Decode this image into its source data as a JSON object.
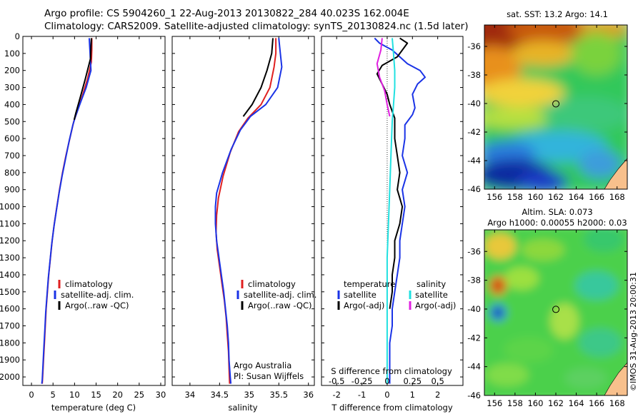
{
  "header": {
    "line1": "Argo profile: CS 5904260_1 22-Aug-2013 20130822_284 40.023S 162.004E",
    "line2": "Climatology: CARS2009. Satellite-adjusted climatology: synTS_20130824.nc (1.5d later)"
  },
  "colors": {
    "climatology": "#e02020",
    "satellite": "#1a33e6",
    "argo": "#000000",
    "argo_salinity_diff": "#e020e0",
    "satellite_salinity_diff": "#20e0e0"
  },
  "chart_data": [
    {
      "type": "line",
      "panel": "temperature",
      "xlabel": "temperature (deg C)",
      "ylabel": "",
      "xlim": [
        -2,
        31
      ],
      "ylim": [
        2050,
        0
      ],
      "xticks": [
        0,
        5,
        10,
        15,
        20,
        25,
        30
      ],
      "yticks": [
        0,
        100,
        200,
        300,
        400,
        500,
        600,
        700,
        800,
        900,
        1000,
        1100,
        1200,
        1300,
        1400,
        1500,
        1600,
        1700,
        1800,
        1900,
        2000
      ],
      "legend": [
        "climatology",
        "satellite-adj. clim.",
        "Argo(..raw -QC)"
      ],
      "legend_position": "lower-right",
      "series": [
        {
          "name": "climatology",
          "color_key": "climatology",
          "points": [
            [
              14.0,
              10
            ],
            [
              14.0,
              80
            ],
            [
              13.9,
              150
            ],
            [
              13.0,
              250
            ],
            [
              11.8,
              350
            ],
            [
              10.5,
              450
            ],
            [
              9.8,
              500
            ],
            [
              8.9,
              600
            ],
            [
              8.0,
              700
            ],
            [
              7.2,
              800
            ],
            [
              6.5,
              900
            ],
            [
              5.9,
              1000
            ],
            [
              5.3,
              1100
            ],
            [
              4.8,
              1200
            ],
            [
              4.4,
              1300
            ],
            [
              4.0,
              1400
            ],
            [
              3.7,
              1500
            ],
            [
              3.4,
              1600
            ],
            [
              3.2,
              1700
            ],
            [
              3.0,
              1800
            ],
            [
              2.8,
              1900
            ],
            [
              2.6,
              2000
            ],
            [
              2.5,
              2040
            ]
          ]
        },
        {
          "name": "satellite-adj. clim.",
          "color_key": "satellite",
          "points": [
            [
              13.4,
              10
            ],
            [
              13.6,
              100
            ],
            [
              13.8,
              200
            ],
            [
              12.7,
              300
            ],
            [
              11.5,
              380
            ],
            [
              10.2,
              470
            ],
            [
              9.6,
              520
            ],
            [
              8.7,
              620
            ],
            [
              7.9,
              720
            ],
            [
              7.1,
              820
            ],
            [
              6.4,
              920
            ],
            [
              5.8,
              1020
            ],
            [
              5.2,
              1120
            ],
            [
              4.7,
              1220
            ],
            [
              4.3,
              1320
            ],
            [
              3.9,
              1420
            ],
            [
              3.6,
              1520
            ],
            [
              3.3,
              1620
            ],
            [
              3.1,
              1720
            ],
            [
              2.9,
              1820
            ],
            [
              2.7,
              1920
            ],
            [
              2.5,
              2020
            ],
            [
              2.4,
              2040
            ]
          ]
        },
        {
          "name": "Argo(..raw -QC)",
          "color_key": "argo",
          "points": [
            [
              13.9,
              10
            ],
            [
              13.8,
              60
            ],
            [
              13.7,
              130
            ],
            [
              12.5,
              250
            ],
            [
              11.3,
              360
            ],
            [
              10.3,
              450
            ],
            [
              9.9,
              490
            ]
          ]
        }
      ]
    },
    {
      "type": "line",
      "panel": "salinity",
      "xlabel": "salinity",
      "ylabel": "",
      "xlim": [
        33.7,
        36.1
      ],
      "ylim": [
        2050,
        0
      ],
      "xticks": [
        34,
        34.5,
        35,
        35.5,
        36
      ],
      "legend": [
        "climatology",
        "satellite-adj. clim.",
        "Argo(..raw -QC)"
      ],
      "legend_position": "lower-right",
      "annotation": [
        "Argo Australia",
        "PI: Susan Wijffels"
      ],
      "series": [
        {
          "name": "climatology",
          "color_key": "climatology",
          "points": [
            [
              35.45,
              10
            ],
            [
              35.45,
              100
            ],
            [
              35.42,
              180
            ],
            [
              35.35,
              300
            ],
            [
              35.2,
              400
            ],
            [
              34.98,
              480
            ],
            [
              34.82,
              560
            ],
            [
              34.68,
              680
            ],
            [
              34.56,
              820
            ],
            [
              34.48,
              950
            ],
            [
              34.45,
              1050
            ],
            [
              34.44,
              1150
            ],
            [
              34.46,
              1250
            ],
            [
              34.5,
              1350
            ],
            [
              34.54,
              1450
            ],
            [
              34.58,
              1550
            ],
            [
              34.61,
              1650
            ],
            [
              34.63,
              1750
            ],
            [
              34.65,
              1850
            ],
            [
              34.66,
              1950
            ],
            [
              34.67,
              2040
            ]
          ]
        },
        {
          "name": "satellite-adj. clim.",
          "color_key": "satellite",
          "points": [
            [
              35.5,
              10
            ],
            [
              35.52,
              80
            ],
            [
              35.55,
              180
            ],
            [
              35.48,
              300
            ],
            [
              35.28,
              400
            ],
            [
              35.02,
              470
            ],
            [
              34.85,
              550
            ],
            [
              34.7,
              660
            ],
            [
              34.55,
              800
            ],
            [
              34.45,
              920
            ],
            [
              34.43,
              1000
            ],
            [
              34.43,
              1100
            ],
            [
              34.45,
              1200
            ],
            [
              34.49,
              1300
            ],
            [
              34.53,
              1400
            ],
            [
              34.57,
              1500
            ],
            [
              34.6,
              1600
            ],
            [
              34.63,
              1700
            ],
            [
              34.65,
              1800
            ],
            [
              34.66,
              1900
            ],
            [
              34.68,
              2000
            ],
            [
              34.69,
              2040
            ]
          ]
        },
        {
          "name": "Argo(..raw -QC)",
          "color_key": "argo",
          "points": [
            [
              35.4,
              10
            ],
            [
              35.38,
              100
            ],
            [
              35.3,
              200
            ],
            [
              35.2,
              300
            ],
            [
              35.05,
              400
            ],
            [
              34.9,
              470
            ]
          ]
        }
      ]
    },
    {
      "type": "line",
      "panel": "difference",
      "xlabel": "T difference from climatology",
      "xlabel2": "S difference from climatology",
      "xlim": [
        -2.6,
        3.0
      ],
      "ylim": [
        2050,
        0
      ],
      "xticks": [
        -2,
        -1,
        0,
        1,
        2
      ],
      "xticks2_labels": [
        "-0.5",
        "-0.25",
        "0",
        "0.25",
        "0.5"
      ],
      "xticks2_positions": [
        -2,
        -1,
        0,
        1,
        2
      ],
      "legend_groups": [
        {
          "title": "temperature",
          "items": [
            "satellite",
            "Argo(-adj)"
          ]
        },
        {
          "title": "salinity",
          "items": [
            "satellite",
            "Argo(-adj)"
          ]
        }
      ],
      "series": [
        {
          "name": "temperature satellite",
          "color_key": "satellite",
          "points": [
            [
              -0.5,
              10
            ],
            [
              -0.3,
              40
            ],
            [
              0.2,
              80
            ],
            [
              0.5,
              120
            ],
            [
              0.8,
              160
            ],
            [
              1.3,
              200
            ],
            [
              1.5,
              240
            ],
            [
              1.2,
              280
            ],
            [
              1.0,
              340
            ],
            [
              1.1,
              420
            ],
            [
              1.0,
              460
            ],
            [
              0.7,
              520
            ],
            [
              0.7,
              600
            ],
            [
              0.6,
              700
            ],
            [
              0.8,
              800
            ],
            [
              0.6,
              900
            ],
            [
              0.7,
              1000
            ],
            [
              0.6,
              1100
            ],
            [
              0.5,
              1200
            ],
            [
              0.5,
              1300
            ],
            [
              0.4,
              1400
            ],
            [
              0.3,
              1500
            ],
            [
              0.2,
              1600
            ],
            [
              0.2,
              1700
            ],
            [
              0.1,
              1800
            ],
            [
              0.1,
              1900
            ],
            [
              0.1,
              2000
            ],
            [
              0.1,
              2040
            ]
          ]
        },
        {
          "name": "temperature Argo(-adj)",
          "color_key": "argo",
          "points": [
            [
              0.5,
              10
            ],
            [
              0.8,
              40
            ],
            [
              0.6,
              80
            ],
            [
              0.4,
              120
            ],
            [
              -0.2,
              170
            ],
            [
              -0.4,
              220
            ],
            [
              -0.2,
              280
            ],
            [
              0.0,
              340
            ],
            [
              0.1,
              400
            ],
            [
              0.3,
              480
            ],
            [
              0.3,
              600
            ],
            [
              0.4,
              700
            ],
            [
              0.5,
              800
            ],
            [
              0.4,
              900
            ],
            [
              0.6,
              1000
            ],
            [
              0.5,
              1100
            ],
            [
              0.3,
              1200
            ],
            [
              0.3,
              1300
            ],
            [
              0.2,
              1400
            ],
            [
              0.2,
              1500
            ],
            [
              0.1,
              1600
            ]
          ]
        },
        {
          "name": "salinity satellite",
          "color_key": "satellite_salinity_diff",
          "points": [
            [
              0.2,
              10
            ],
            [
              0.25,
              100
            ],
            [
              0.3,
              200
            ],
            [
              0.3,
              300
            ],
            [
              0.25,
              400
            ],
            [
              0.2,
              500
            ],
            [
              0.15,
              700
            ],
            [
              0.1,
              900
            ],
            [
              0.05,
              1100
            ],
            [
              0.0,
              1300
            ],
            [
              0.0,
              1500
            ],
            [
              0.0,
              1700
            ],
            [
              0.0,
              1900
            ],
            [
              0.0,
              2040
            ]
          ]
        },
        {
          "name": "salinity Argo(-adj)",
          "color_key": "argo_salinity_diff",
          "points": [
            [
              -0.2,
              10
            ],
            [
              -0.25,
              80
            ],
            [
              -0.4,
              160
            ],
            [
              -0.3,
              240
            ],
            [
              -0.1,
              320
            ],
            [
              0.0,
              400
            ],
            [
              0.1,
              470
            ]
          ]
        }
      ]
    },
    {
      "type": "heatmap",
      "panel": "sst_map",
      "title": "sat. SST: 13.2  Argo: 14.1",
      "xlim": [
        155,
        169
      ],
      "ylim": [
        -46,
        -34.5
      ],
      "xticks": [
        156,
        158,
        160,
        162,
        164,
        166,
        168
      ],
      "yticks": [
        -36,
        -38,
        -40,
        -42,
        -44,
        -46
      ],
      "marker": {
        "lon": 162.004,
        "lat": -40.023
      }
    },
    {
      "type": "heatmap",
      "panel": "sla_map",
      "title": "Altim. SLA: 0.073",
      "subtitle": "Argo h1000: 0.00055 h2000: 0.03",
      "xlim": [
        155,
        169
      ],
      "ylim": [
        -46,
        -34.5
      ],
      "xticks": [
        156,
        158,
        160,
        162,
        164,
        166,
        168
      ],
      "yticks": [
        -36,
        -38,
        -40,
        -42,
        -44,
        -46
      ],
      "marker": {
        "lon": 162.004,
        "lat": -40.023
      }
    }
  ],
  "stamp": "©IMOS 31-Aug-2013 20:00:31"
}
